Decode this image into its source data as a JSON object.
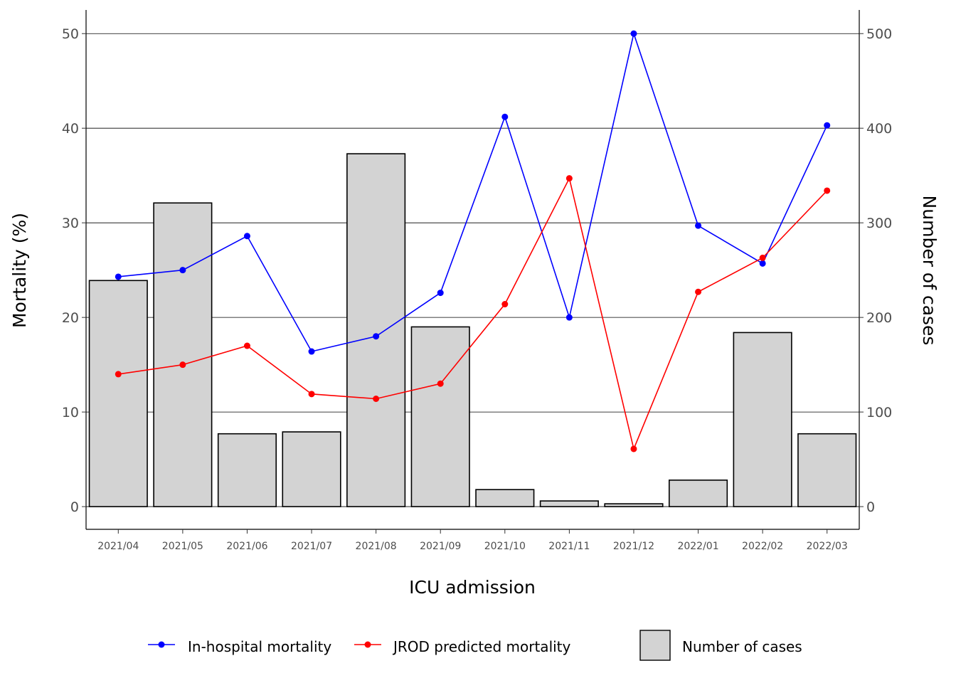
{
  "chart_data": {
    "type": "bar+line",
    "categories": [
      "2021/04",
      "2021/05",
      "2021/06",
      "2021/07",
      "2021/08",
      "2021/09",
      "2021/10",
      "2021/11",
      "2021/12",
      "2022/01",
      "2022/02",
      "2022/03"
    ],
    "bars": {
      "name": "Number of cases",
      "axis": "right",
      "values": [
        239,
        321,
        77,
        79,
        373,
        190,
        18,
        6,
        3,
        28,
        184,
        77
      ],
      "fill": "#d3d3d3",
      "stroke": "#000000"
    },
    "series": [
      {
        "name": "In-hospital mortality",
        "axis": "left",
        "color": "#0000ff",
        "values": [
          24.3,
          25.0,
          28.6,
          16.4,
          18.0,
          22.6,
          41.2,
          20.0,
          50.0,
          29.7,
          25.7,
          40.3
        ]
      },
      {
        "name": "JROD predicted mortality",
        "axis": "left",
        "color": "#ff0000",
        "values": [
          14.0,
          15.0,
          17.0,
          11.9,
          11.4,
          13.0,
          21.4,
          34.7,
          6.1,
          22.7,
          26.3,
          33.4
        ]
      }
    ],
    "xlabel": "ICU admission",
    "ylabel": "Mortality (%)",
    "y2label": "Number of cases",
    "ylim": [
      -2.4,
      52.5
    ],
    "y2lim": [
      -24,
      525
    ],
    "yticks": [
      "0",
      "10",
      "20",
      "30",
      "40",
      "50"
    ],
    "y2ticks": [
      "0",
      "100",
      "200",
      "300",
      "400",
      "500"
    ],
    "grid": "horizontal major",
    "legend_position": "bottom"
  }
}
